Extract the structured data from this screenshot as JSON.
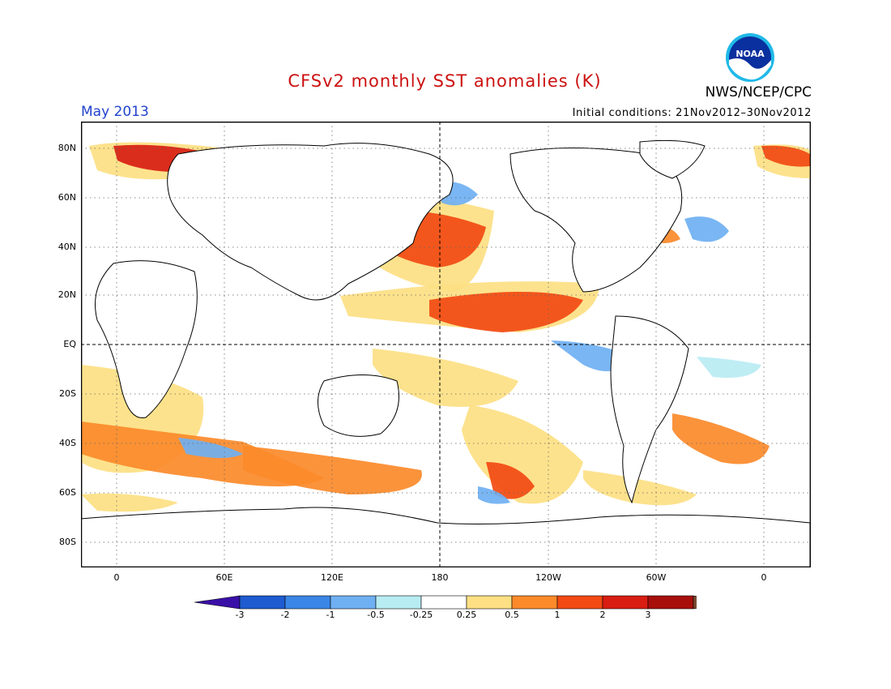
{
  "title": "CFSv2 monthly SST anomalies (K)",
  "agency": "NWS/NCEP/CPC",
  "logo_text": "NOAA",
  "valid_month": "May 2013",
  "initial_conditions": "Initial conditions: 21Nov2012–30Nov2012",
  "colors": {
    "title": "#cc1111",
    "month": "#2244cc",
    "land_outline": "#000000",
    "grid": "#555555"
  },
  "map": {
    "lat_labels": [
      "80N",
      "60N",
      "40N",
      "20N",
      "EQ",
      "20S",
      "40S",
      "60S",
      "80S"
    ],
    "lon_labels": [
      "0",
      "60E",
      "120E",
      "180",
      "120W",
      "60W",
      "0"
    ]
  },
  "colorbar": {
    "tick_labels": [
      "-3",
      "-2",
      "-1",
      "-0.5",
      "-0.25",
      "0.25",
      "0.5",
      "1",
      "2",
      "3"
    ],
    "colors": [
      "#3a0fa8",
      "#1e5bd0",
      "#3a86e6",
      "#6fb0f2",
      "#b8ecf3",
      "#ffffff",
      "#fde083",
      "#fb8a2a",
      "#f24a12",
      "#d81d12",
      "#a70f0b",
      "#7a4a32"
    ]
  }
}
